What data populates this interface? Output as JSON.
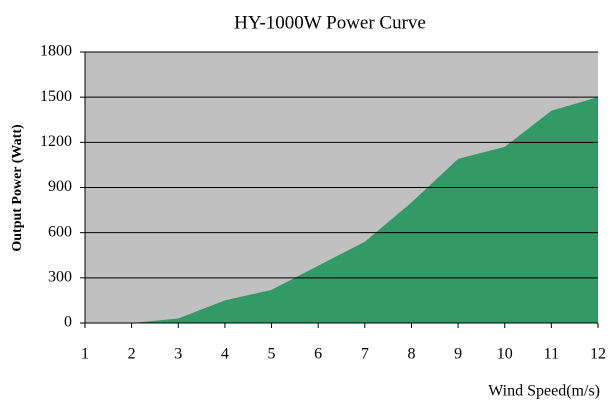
{
  "chart_data": {
    "type": "area",
    "title": "HY-1000W Power Curve",
    "x_label": "Wind Speed(m/s)",
    "y_label": "Output Power (Watt)",
    "x": [
      2,
      3,
      4,
      5,
      6,
      7,
      8,
      9,
      10,
      11,
      12
    ],
    "values": [
      0,
      30,
      150,
      220,
      380,
      540,
      800,
      1090,
      1170,
      1410,
      1500
    ],
    "color": "#339966",
    "background": "#c0c0c0",
    "xlim": [
      1,
      12
    ],
    "xticks": [
      1,
      2,
      3,
      4,
      5,
      6,
      7,
      8,
      9,
      10,
      11,
      12
    ],
    "ylim": [
      0,
      1800
    ],
    "yticks": [
      0,
      300,
      600,
      900,
      1200,
      1500,
      1800
    ],
    "grid": true
  }
}
